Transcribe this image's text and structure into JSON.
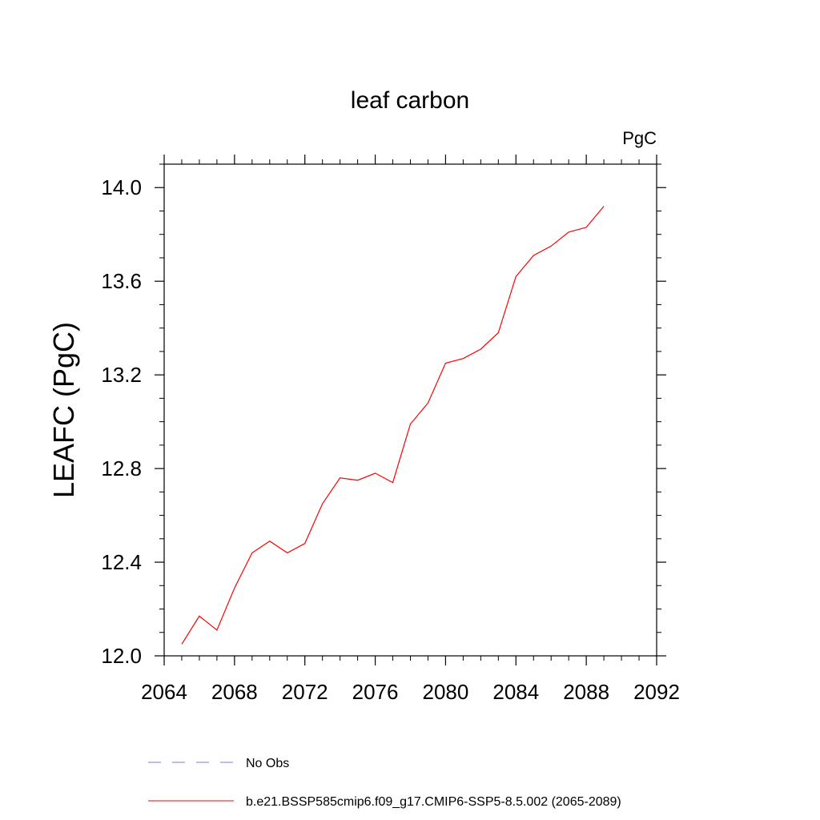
{
  "chart_data": {
    "type": "line",
    "title": "leaf carbon",
    "units": "PgC",
    "xlabel": "",
    "ylabel": "LEAFC  (PgC)",
    "xlim": [
      2064,
      2092
    ],
    "ylim": [
      12.0,
      14.1
    ],
    "xticks": [
      2064,
      2068,
      2072,
      2076,
      2080,
      2084,
      2088,
      2092
    ],
    "yticks": [
      12.0,
      12.4,
      12.8,
      13.2,
      13.6,
      14.0
    ],
    "xtick_labels": [
      "2064",
      "2068",
      "2072",
      "2076",
      "2080",
      "2084",
      "2088",
      "2092"
    ],
    "ytick_labels": [
      "12.0",
      "12.4",
      "12.8",
      "13.2",
      "13.6",
      "14.0"
    ],
    "grid": false,
    "legend_position": "bottom",
    "series": [
      {
        "name": "b.e21.BSSP585cmip6.f09_g17.CMIP6-SSP5-8.5.002 (2065-2089)",
        "color": "#ff0000",
        "dash": "solid",
        "x": [
          2065,
          2066,
          2067,
          2068,
          2069,
          2070,
          2071,
          2072,
          2073,
          2074,
          2075,
          2076,
          2077,
          2078,
          2079,
          2080,
          2081,
          2082,
          2083,
          2084,
          2085,
          2086,
          2087,
          2088,
          2089
        ],
        "y": [
          12.05,
          12.17,
          12.11,
          12.29,
          12.44,
          12.49,
          12.44,
          12.48,
          12.65,
          12.76,
          12.75,
          12.78,
          12.74,
          12.99,
          13.08,
          13.25,
          13.27,
          13.31,
          13.38,
          13.62,
          13.71,
          13.75,
          13.81,
          13.83,
          13.92
        ]
      }
    ],
    "legend": [
      {
        "label": "No Obs",
        "color": "#7b7bd6",
        "dash": "dashed"
      },
      {
        "label": "b.e21.BSSP585cmip6.f09_g17.CMIP6-SSP5-8.5.002 (2065-2089)",
        "color": "#ff0000",
        "dash": "solid"
      }
    ]
  }
}
